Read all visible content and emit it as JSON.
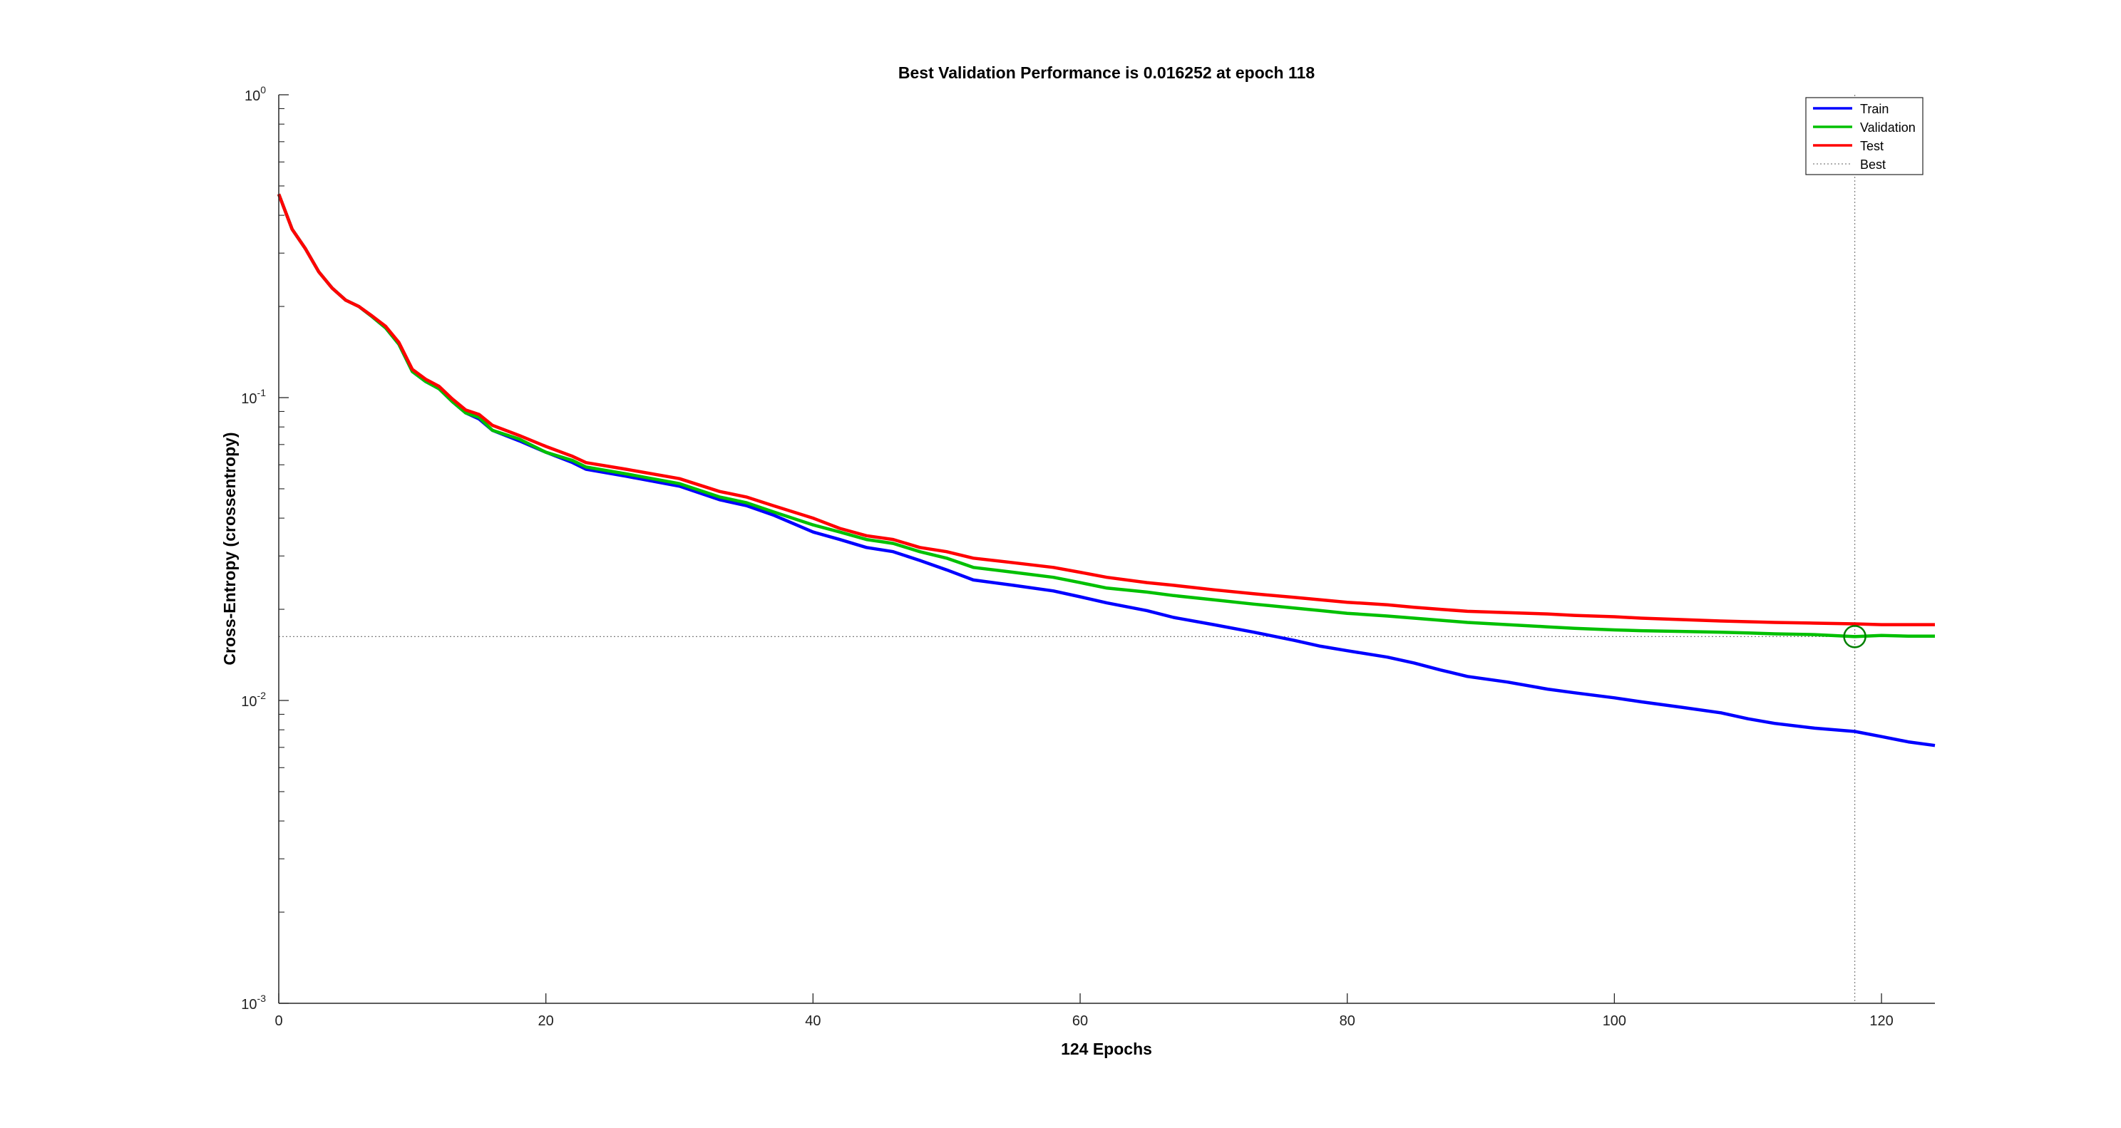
{
  "chart_data": {
    "type": "line",
    "title": "Best Validation Performance is 0.016252 at epoch 118",
    "xlabel": "124 Epochs",
    "ylabel": "Cross-Entropy  (crossentropy)",
    "xlim": [
      0,
      124
    ],
    "ylim": [
      0.001,
      1
    ],
    "yscale": "log",
    "grid": false,
    "legend_position": "top-right",
    "x_ticks": [
      0,
      20,
      40,
      60,
      80,
      100,
      120
    ],
    "y_ticks": [
      {
        "value": 0.001,
        "base": "10",
        "exp": "-3"
      },
      {
        "value": 0.01,
        "base": "10",
        "exp": "-2"
      },
      {
        "value": 0.1,
        "base": "10",
        "exp": "-1"
      },
      {
        "value": 1,
        "base": "10",
        "exp": "0"
      }
    ],
    "series": [
      {
        "name": "Train",
        "color": "#0000ff",
        "x": [
          0,
          1,
          2,
          3,
          4,
          5,
          6,
          7,
          8,
          9,
          10,
          11,
          12,
          13,
          14,
          15,
          16,
          18,
          20,
          22,
          23,
          26,
          30,
          33,
          35,
          37,
          40,
          42,
          44,
          46,
          48,
          50,
          52,
          55,
          58,
          60,
          62,
          65,
          67,
          70,
          73,
          76,
          78,
          80,
          83,
          85,
          87,
          89,
          92,
          95,
          97,
          100,
          102,
          105,
          108,
          110,
          112,
          115,
          118,
          120,
          122,
          124
        ],
        "y": [
          0.47,
          0.36,
          0.31,
          0.26,
          0.23,
          0.21,
          0.2,
          0.185,
          0.17,
          0.15,
          0.122,
          0.113,
          0.107,
          0.097,
          0.089,
          0.085,
          0.078,
          0.072,
          0.066,
          0.061,
          0.058,
          0.055,
          0.051,
          0.046,
          0.044,
          0.041,
          0.036,
          0.034,
          0.032,
          0.031,
          0.029,
          0.027,
          0.025,
          0.024,
          0.023,
          0.022,
          0.021,
          0.0198,
          0.0188,
          0.0178,
          0.0168,
          0.0158,
          0.0151,
          0.0146,
          0.0139,
          0.0133,
          0.0126,
          0.012,
          0.0115,
          0.0109,
          0.0106,
          0.0102,
          0.0099,
          0.0095,
          0.0091,
          0.0087,
          0.0084,
          0.0081,
          0.0079,
          0.0076,
          0.0073,
          0.0071
        ]
      },
      {
        "name": "Validation",
        "color": "#00c000",
        "x": [
          0,
          1,
          2,
          3,
          4,
          5,
          6,
          7,
          8,
          9,
          10,
          11,
          12,
          13,
          14,
          15,
          16,
          18,
          20,
          22,
          23,
          26,
          30,
          33,
          35,
          37,
          40,
          42,
          44,
          46,
          48,
          50,
          52,
          55,
          58,
          60,
          62,
          65,
          67,
          70,
          73,
          76,
          78,
          80,
          83,
          85,
          87,
          89,
          92,
          95,
          97,
          100,
          102,
          105,
          108,
          110,
          112,
          115,
          118,
          120,
          122,
          124
        ],
        "y": [
          0.47,
          0.36,
          0.31,
          0.26,
          0.23,
          0.21,
          0.2,
          0.185,
          0.17,
          0.15,
          0.122,
          0.113,
          0.107,
          0.097,
          0.089,
          0.086,
          0.078,
          0.073,
          0.066,
          0.062,
          0.059,
          0.056,
          0.052,
          0.047,
          0.045,
          0.042,
          0.038,
          0.036,
          0.034,
          0.033,
          0.031,
          0.0295,
          0.0275,
          0.0265,
          0.0255,
          0.0245,
          0.0235,
          0.0228,
          0.0222,
          0.0215,
          0.0208,
          0.0202,
          0.0198,
          0.0194,
          0.019,
          0.0187,
          0.0184,
          0.0181,
          0.0178,
          0.0175,
          0.0173,
          0.0171,
          0.017,
          0.0169,
          0.0168,
          0.0167,
          0.0166,
          0.0165,
          0.016252,
          0.0164,
          0.0163,
          0.0163
        ]
      },
      {
        "name": "Test",
        "color": "#ff0000",
        "x": [
          0,
          1,
          2,
          3,
          4,
          5,
          6,
          7,
          8,
          9,
          10,
          11,
          12,
          13,
          14,
          15,
          16,
          18,
          20,
          22,
          23,
          26,
          30,
          33,
          35,
          37,
          40,
          42,
          44,
          46,
          48,
          50,
          52,
          55,
          58,
          60,
          62,
          65,
          67,
          70,
          73,
          76,
          78,
          80,
          83,
          85,
          87,
          89,
          92,
          95,
          97,
          100,
          102,
          105,
          108,
          110,
          112,
          115,
          118,
          120,
          122,
          124
        ],
        "y": [
          0.47,
          0.36,
          0.31,
          0.26,
          0.23,
          0.21,
          0.2,
          0.186,
          0.172,
          0.152,
          0.124,
          0.115,
          0.109,
          0.099,
          0.091,
          0.088,
          0.081,
          0.075,
          0.069,
          0.064,
          0.061,
          0.058,
          0.054,
          0.049,
          0.047,
          0.044,
          0.04,
          0.037,
          0.035,
          0.034,
          0.032,
          0.031,
          0.0295,
          0.0285,
          0.0275,
          0.0265,
          0.0255,
          0.0245,
          0.024,
          0.0232,
          0.0225,
          0.0219,
          0.0215,
          0.0211,
          0.0207,
          0.0203,
          0.02,
          0.0197,
          0.0195,
          0.0193,
          0.0191,
          0.0189,
          0.0187,
          0.0185,
          0.0183,
          0.0182,
          0.0181,
          0.018,
          0.0179,
          0.0178,
          0.0178,
          0.0178
        ]
      }
    ],
    "best": {
      "label": "Best",
      "epoch": 118,
      "value": 0.016252,
      "color": "#008000",
      "line_color": "#7f7f7f"
    }
  }
}
